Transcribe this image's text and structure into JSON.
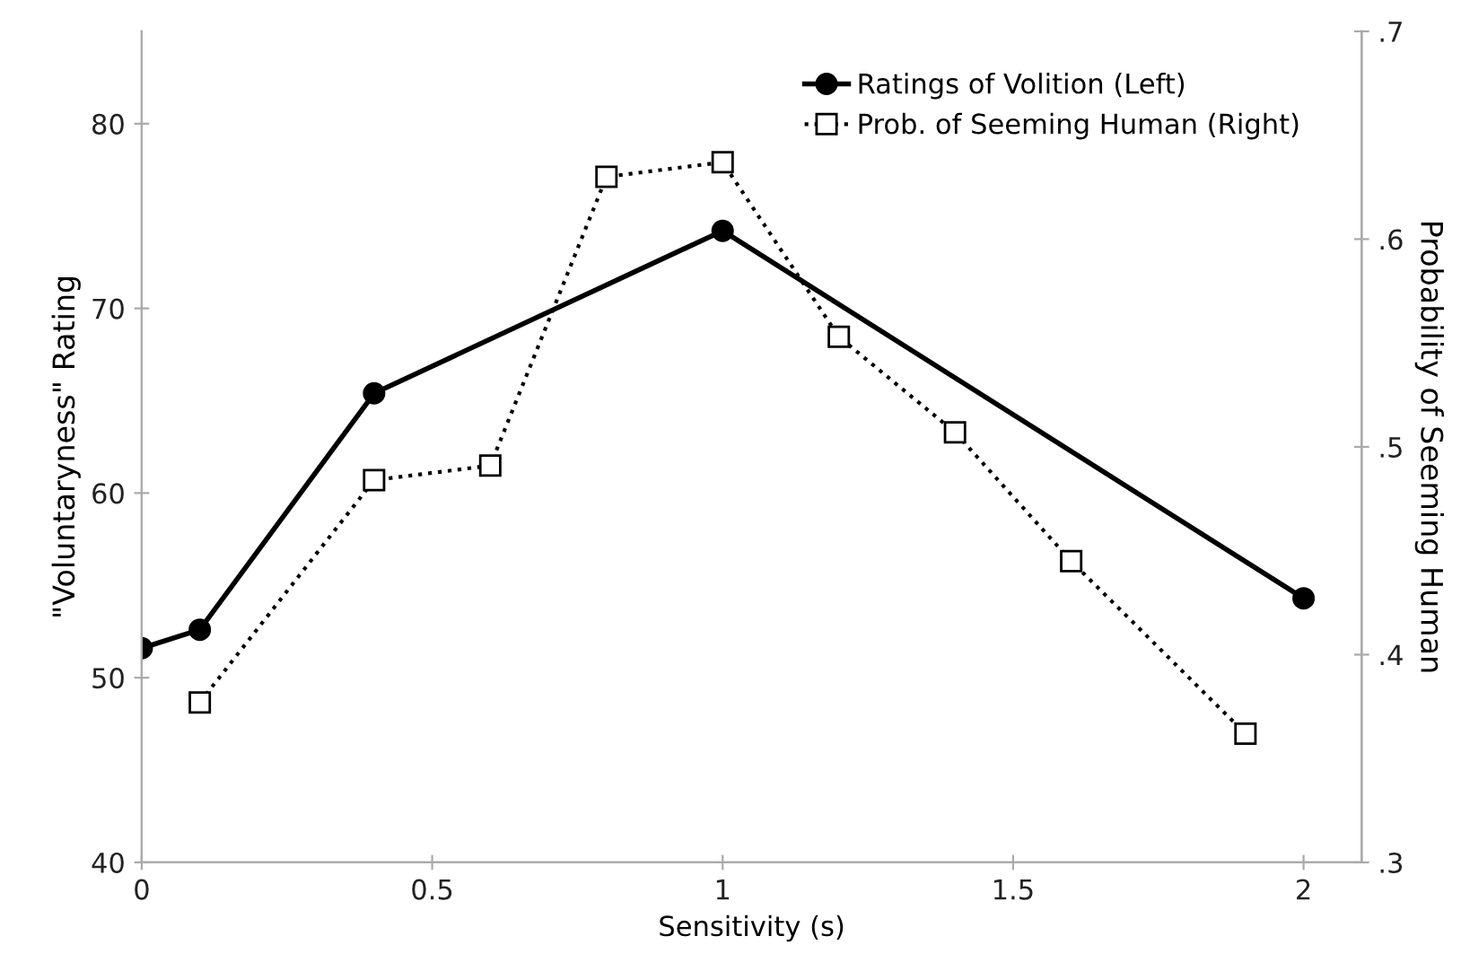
{
  "chart_data": {
    "type": "line",
    "xlabel": "Sensitivity (s)",
    "ylabel": "\"Voluntaryness\" Rating",
    "y2label": "Probability of Seeming Human",
    "xlim": [
      0,
      2.1
    ],
    "xticks": [
      0,
      0.5,
      1,
      1.5,
      2
    ],
    "ylim": [
      40,
      85
    ],
    "yticks": [
      40,
      50,
      60,
      70,
      80
    ],
    "y2lim": [
      0.3,
      0.7
    ],
    "y2ticks": [
      {
        "value": 0.3,
        "label": ".3"
      },
      {
        "value": 0.4,
        "label": ".4"
      },
      {
        "value": 0.5,
        "label": ".5"
      },
      {
        "value": 0.6,
        "label": ".6"
      },
      {
        "value": 0.7,
        "label": ".7"
      }
    ],
    "grid": false,
    "legend": "top right",
    "series": [
      {
        "name": "Ratings of Volition (Left)",
        "color": "#000000",
        "marker": "circle",
        "line_style": "solid",
        "x": [
          0,
          0.1,
          0.4,
          1,
          2
        ],
        "values": [
          51.6,
          52.6,
          65.4,
          74.2,
          54.3
        ]
      },
      {
        "name": "Prob. of Seeming Human (Right)",
        "color": "#000000",
        "marker": "square",
        "line_style": "dotted",
        "axis": "y2",
        "x": [
          0.1,
          0.4,
          0.6,
          0.8,
          1,
          1.2,
          1.4,
          1.6,
          1.9
        ],
        "values": [
          0.377,
          0.484,
          0.491,
          0.63,
          0.637,
          0.553,
          0.507,
          0.445,
          0.362
        ]
      }
    ]
  }
}
